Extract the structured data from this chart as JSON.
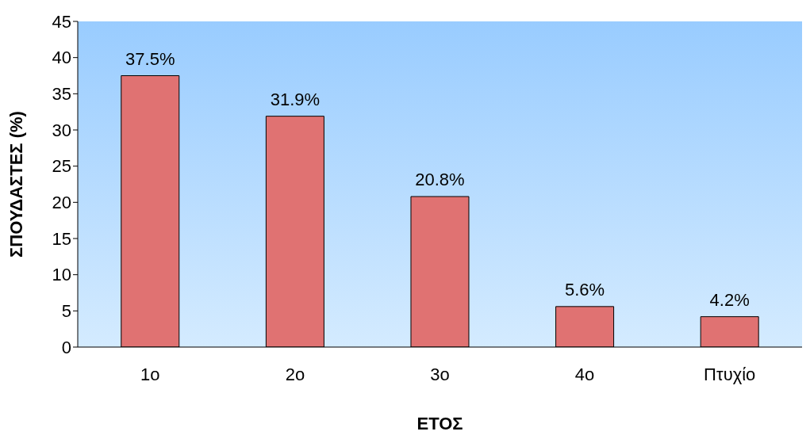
{
  "chart_data": {
    "type": "bar",
    "xlabel": "ΕΤΟΣ",
    "ylabel": "ΣΠΟΥΔΑΣΤΕΣ (%)",
    "categories": [
      "1ο",
      "2ο",
      "3ο",
      "4ο",
      "Πτυχίο"
    ],
    "values": [
      37.5,
      31.9,
      20.8,
      5.6,
      4.2
    ],
    "value_labels": [
      "37.5%",
      "31.9%",
      "20.8%",
      "5.6%",
      "4.2%"
    ],
    "color": "#e07272",
    "ylim": [
      0,
      45
    ],
    "yticks": [
      0,
      5,
      10,
      15,
      20,
      25,
      30,
      35,
      40,
      45
    ],
    "grid": false
  }
}
